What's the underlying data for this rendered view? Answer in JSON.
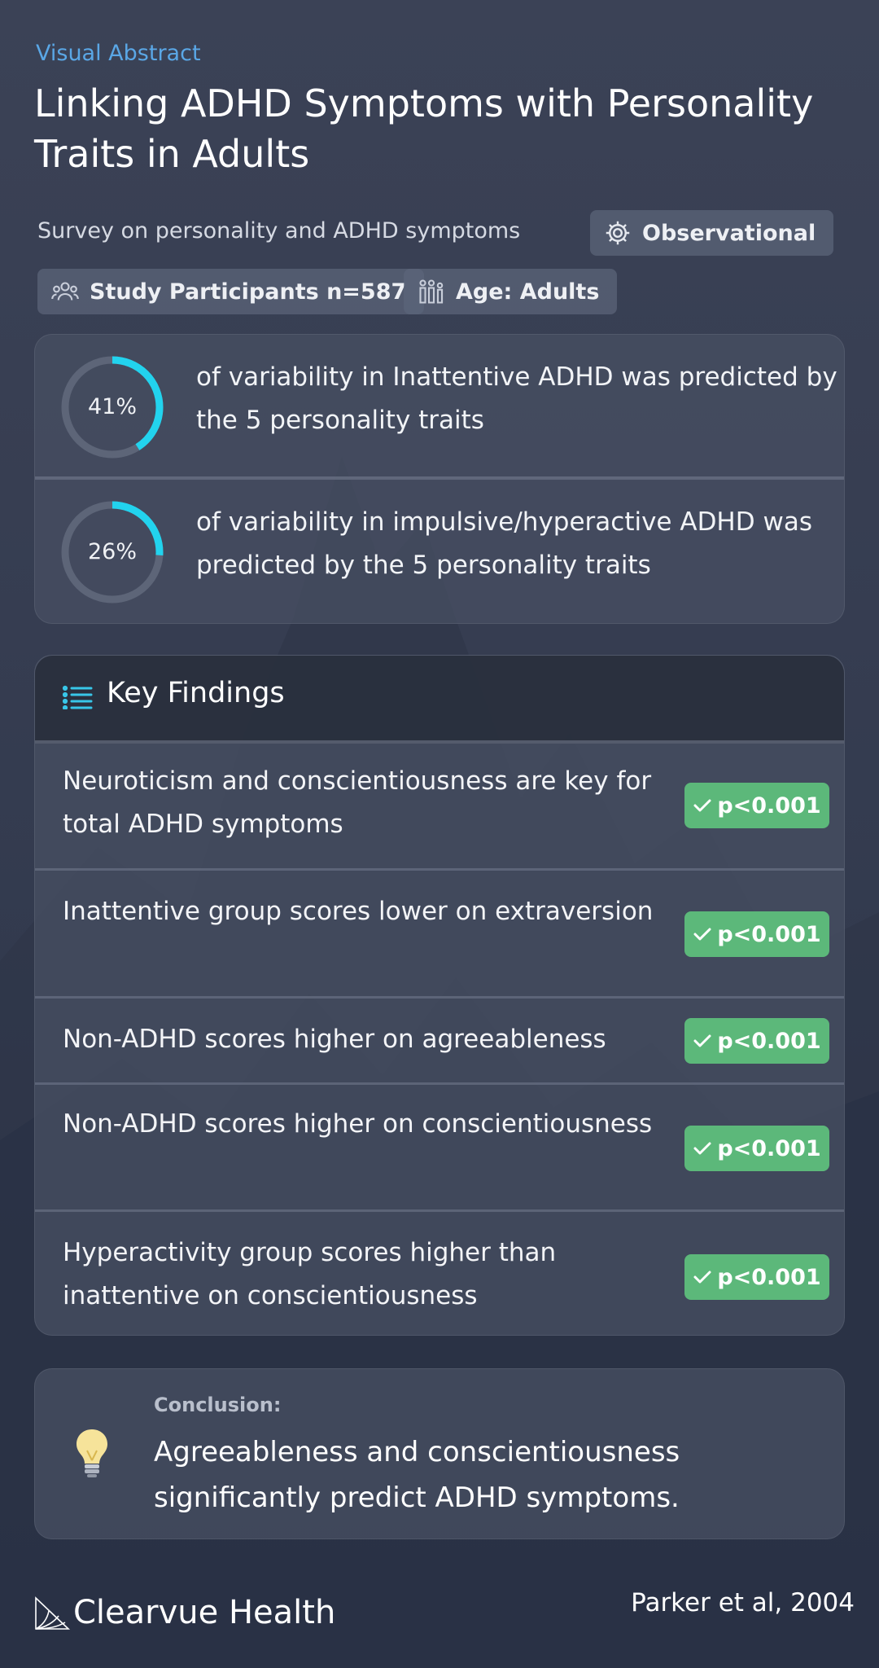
{
  "header": {
    "eyebrow": "Visual Abstract",
    "title": "Linking ADHD Symptoms with Personality Traits in Adults"
  },
  "study": {
    "description": "Survey on personality and ADHD symptoms",
    "design": "Observational",
    "participants": "Study Participants n=587",
    "age": "Age: Adults"
  },
  "stats": [
    {
      "percent_label": "41%",
      "percent_value": 41,
      "text": "of variability in Inattentive ADHD was predicted by the 5 personality traits"
    },
    {
      "percent_label": "26%",
      "percent_value": 26,
      "text": "of variability in impulsive/hyperactive ADHD was predicted by the 5 personality traits"
    }
  ],
  "key_findings": {
    "title": "Key Findings",
    "items": [
      {
        "text": "Neuroticism and conscientiousness are key for total ADHD symptoms",
        "badge": "p<0.001"
      },
      {
        "text": "Inattentive group scores lower on extraversion",
        "badge": "p<0.001"
      },
      {
        "text": "Non-ADHD scores higher on agreeableness",
        "badge": "p<0.001"
      },
      {
        "text": "Non-ADHD scores higher on conscientiousness",
        "badge": "p<0.001"
      },
      {
        "text": "Hyperactivity group scores higher than inattentive on conscientiousness",
        "badge": "p<0.001"
      }
    ]
  },
  "conclusion": {
    "label": "Conclusion:",
    "text": "Agreeableness and conscientiousness significantly predict ADHD symptoms."
  },
  "footer": {
    "brand": "Clearvue Health",
    "citation": "Parker et al, 2004"
  },
  "colors": {
    "accent_blue": "#5aa7e6",
    "ring_cyan": "#22d3ee",
    "badge_green": "#5cb87a",
    "background": "#373e52"
  },
  "icons": {
    "design": "gear-icon",
    "participants": "people-group-icon",
    "age": "family-icon",
    "key_findings": "list-icon",
    "conclusion": "lightbulb-icon",
    "badge": "checkmark-icon",
    "brand": "brand-logo-icon"
  }
}
